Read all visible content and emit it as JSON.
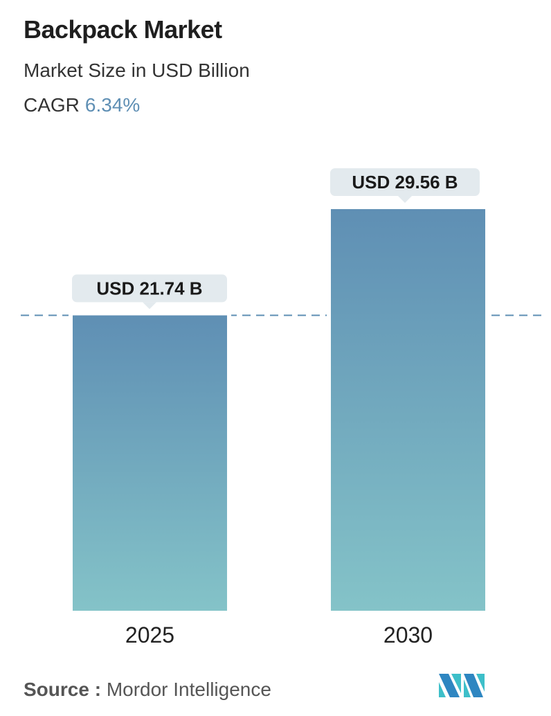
{
  "header": {
    "title": "Backpack Market",
    "subtitle": "Market Size in USD Billion",
    "cagr_label": "CAGR",
    "cagr_value": "6.34%"
  },
  "chart_data": {
    "type": "bar",
    "categories": [
      "2025",
      "2030"
    ],
    "values": [
      21.74,
      29.56
    ],
    "data_labels": [
      "USD 21.74 B",
      "USD 29.56 B"
    ],
    "ylim": [
      0,
      29.56
    ],
    "reference_line": {
      "value": 21.74,
      "style": "dashed"
    },
    "colors": {
      "bar_top": "#5f8fb4",
      "bar_bottom": "#84c3c8",
      "label_bg": "#e3eaee",
      "dash": "#5f8fb4"
    }
  },
  "footer": {
    "source_label": "Source :",
    "source_value": "Mordor Intelligence",
    "logo_text": "Mordor Intelligence"
  }
}
